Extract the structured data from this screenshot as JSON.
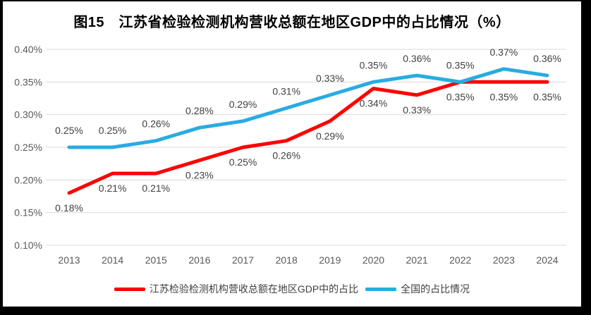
{
  "title": "图15　江苏省检验检测机构营收总额在地区GDP中的占比情况（%）",
  "colors": {
    "frame": "#000000",
    "background": "#FFFFFF",
    "grid": "#D9D9D9",
    "axis_text": "#595959",
    "data_label_text": "#3F3F3F",
    "title_text": "#000000"
  },
  "chart_data": {
    "type": "line",
    "title": "图15　江苏省检验检测机构营收总额在地区GDP中的占比情况（%）",
    "categories": [
      "2013",
      "2014",
      "2015",
      "2016",
      "2017",
      "2018",
      "2019",
      "2020",
      "2021",
      "2022",
      "2023",
      "2024"
    ],
    "y_ticks": [
      "0.40%",
      "0.35%",
      "0.30%",
      "0.25%",
      "0.20%",
      "0.15%",
      "0.10%"
    ],
    "ylim": [
      0.1,
      0.4
    ],
    "grid": true,
    "legend_position": "bottom",
    "series": [
      {
        "name": "江苏检验检测机构营收总额在地区GDP中的占比",
        "color": "#FF0000",
        "label_position": "below",
        "values": [
          0.18,
          0.21,
          0.21,
          0.23,
          0.25,
          0.26,
          0.29,
          0.34,
          0.33,
          0.35,
          0.35,
          0.35
        ],
        "labels": [
          "0.18%",
          "0.21%",
          "0.21%",
          "0.23%",
          "0.25%",
          "0.26%",
          "0.29%",
          "0.34%",
          "0.33%",
          "0.35%",
          "0.35%",
          "0.35%"
        ]
      },
      {
        "name": "全国的占比情况",
        "color": "#29ABE2",
        "label_position": "above",
        "values": [
          0.25,
          0.25,
          0.26,
          0.28,
          0.29,
          0.31,
          0.33,
          0.35,
          0.36,
          0.35,
          0.37,
          0.36
        ],
        "labels": [
          "0.25%",
          "0.25%",
          "0.26%",
          "0.28%",
          "0.29%",
          "0.31%",
          "0.33%",
          "0.35%",
          "0.36%",
          "0.35%",
          "0.37%",
          "0.36%"
        ]
      }
    ]
  }
}
